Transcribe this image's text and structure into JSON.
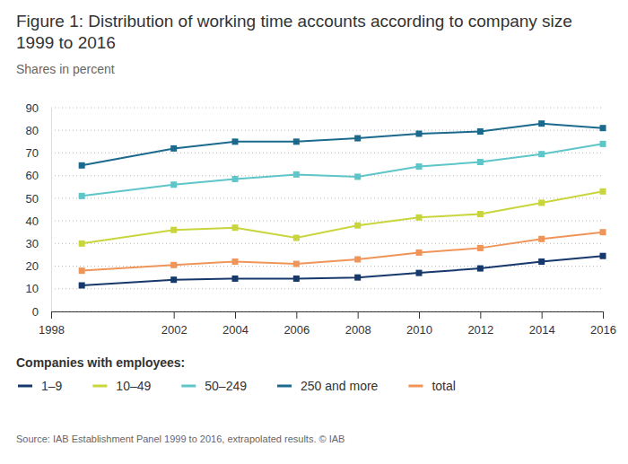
{
  "chart_data": {
    "type": "line",
    "title": [
      "Figure 1: Distribution of working time accounts according to company size",
      "1999 to 2016"
    ],
    "subtitle": "Shares in percent",
    "legend_title": "Companies with employees:",
    "source": "Source: IAB Establishment Panel 1999 to 2016, extrapolated results. © IAB",
    "x": [
      1999,
      2002,
      2004,
      2006,
      2008,
      2010,
      2012,
      2014,
      2016
    ],
    "xlim": [
      1998,
      2016
    ],
    "xticks": [
      1998,
      2002,
      2004,
      2006,
      2008,
      2010,
      2012,
      2014,
      2016
    ],
    "ylim": [
      0,
      90
    ],
    "yticks": [
      0,
      10,
      20,
      30,
      40,
      50,
      60,
      70,
      80,
      90
    ],
    "grid": true,
    "legend": "bottom",
    "marker": "square",
    "series": [
      {
        "name": "1–9",
        "color": "#17386b",
        "values": [
          11.5,
          14,
          14.5,
          14.5,
          15,
          17,
          19,
          22,
          24.5
        ]
      },
      {
        "name": "10–49",
        "color": "#c8d53c",
        "values": [
          30,
          36,
          37,
          32.5,
          38,
          41.5,
          43,
          48,
          53
        ]
      },
      {
        "name": "50–249",
        "color": "#5ec5c8",
        "values": [
          51,
          56,
          58.5,
          60.5,
          59.5,
          64,
          66,
          69.5,
          74
        ]
      },
      {
        "name": "250 and more",
        "color": "#1b6a8e",
        "values": [
          64.5,
          72,
          75,
          75,
          76.5,
          78.5,
          79.5,
          83,
          81
        ]
      },
      {
        "name": "total",
        "color": "#f0955a",
        "values": [
          18,
          20.5,
          22,
          21,
          23,
          26,
          28,
          32,
          35
        ]
      }
    ]
  }
}
